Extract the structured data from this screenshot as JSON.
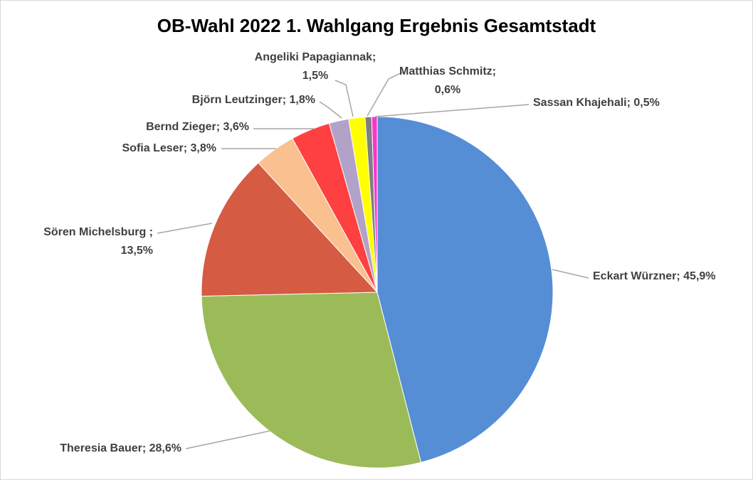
{
  "chart_data": {
    "type": "pie",
    "title": "OB-Wahl 2022 1. Wahlgang Ergebnis Gesamtstadt",
    "slices": [
      {
        "name": "Eckart Würzner",
        "value": 45.9,
        "label_lines": [
          "Eckart Würzner; 45,9%"
        ],
        "color": "#558ed5"
      },
      {
        "name": "Theresia Bauer",
        "value": 28.6,
        "label_lines": [
          "Theresia Bauer; 28,6%"
        ],
        "color": "#9bbb59"
      },
      {
        "name": "Sören Michelsburg",
        "value": 13.5,
        "label_lines": [
          "Sören Michelsburg ;",
          "13,5%"
        ],
        "color": "#d55b42"
      },
      {
        "name": "Sofia Leser",
        "value": 3.8,
        "label_lines": [
          "Sofia Leser; 3,8%"
        ],
        "color": "#fac090"
      },
      {
        "name": "Bernd Zieger",
        "value": 3.6,
        "label_lines": [
          "Bernd Zieger; 3,6%"
        ],
        "color": "#ff4040"
      },
      {
        "name": "Björn Leutzinger",
        "value": 1.8,
        "label_lines": [
          "Björn Leutzinger; 1,8%"
        ],
        "color": "#b3a2c7"
      },
      {
        "name": "Angeliki Papagiannak",
        "value": 1.5,
        "label_lines": [
          "Angeliki Papagiannak;",
          "1,5%"
        ],
        "color": "#ffff00"
      },
      {
        "name": "Matthias Schmitz",
        "value": 0.6,
        "label_lines": [
          "Matthias Schmitz;",
          "0,6%"
        ],
        "color": "#7f7f7f"
      },
      {
        "name": "Sassan Khajehali",
        "value": 0.5,
        "label_lines": [
          "Sassan Khajehali; 0,5%"
        ],
        "color": "#ff33cc"
      }
    ]
  }
}
